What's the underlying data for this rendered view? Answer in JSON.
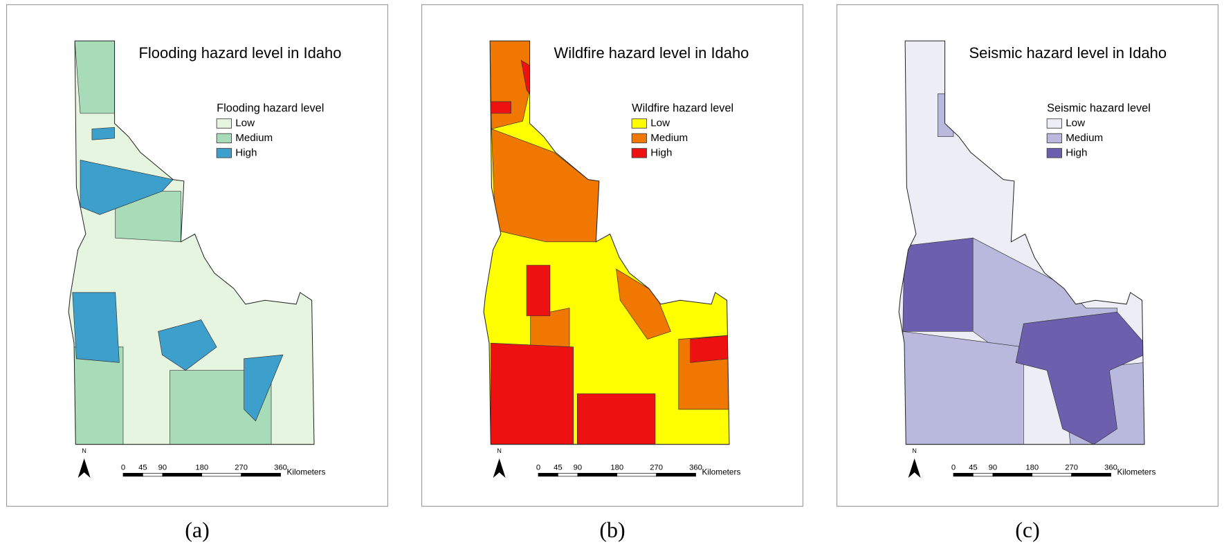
{
  "panels": [
    {
      "title": "Flooding hazard level in Idaho",
      "legend": {
        "title": "Flooding hazard level",
        "items": [
          {
            "label": "Low",
            "color": "#e5f5e0"
          },
          {
            "label": "Medium",
            "color": "#a8dbb8"
          },
          {
            "label": "High",
            "color": "#3d9fcc"
          }
        ]
      },
      "north": "N",
      "scale": {
        "ticks": [
          0,
          45,
          90,
          180,
          270,
          360
        ],
        "unit": "Kilometers"
      },
      "caption": "(a)"
    },
    {
      "title": "Wildfire hazard level in Idaho",
      "legend": {
        "title": "Wildfire hazard level",
        "items": [
          {
            "label": "Low",
            "color": "#ffff00"
          },
          {
            "label": "Medium",
            "color": "#f07800"
          },
          {
            "label": "High",
            "color": "#ee1111"
          }
        ]
      },
      "north": "N",
      "scale": {
        "ticks": [
          0,
          45,
          90,
          180,
          270,
          360
        ],
        "unit": "Kilometers"
      },
      "caption": "(b)"
    },
    {
      "title": "Seismic hazard level in Idaho",
      "legend": {
        "title": "Seismic hazard level",
        "items": [
          {
            "label": "Low",
            "color": "#ededf6"
          },
          {
            "label": "Medium",
            "color": "#b8b9dc"
          },
          {
            "label": "High",
            "color": "#6c5fae"
          }
        ]
      },
      "north": "N",
      "scale": {
        "ticks": [
          0,
          45,
          90,
          180,
          270,
          360
        ],
        "unit": "Kilometers"
      },
      "caption": "(c)"
    }
  ]
}
